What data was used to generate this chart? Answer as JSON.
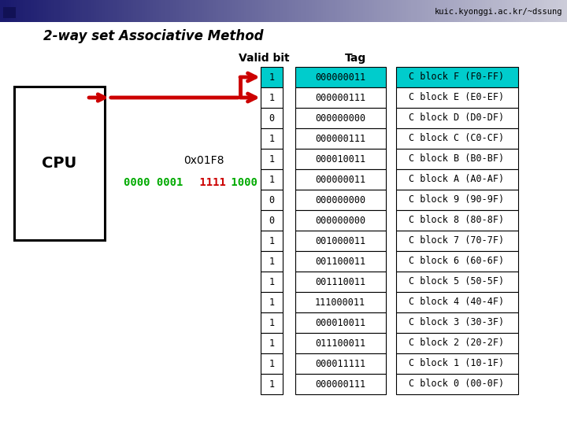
{
  "title": "2-way set Associative Method",
  "watermark": "kuic.kyonggi.ac.kr/~dssung",
  "valid_bits": [
    "1",
    "1",
    "0",
    "1",
    "1",
    "1",
    "0",
    "0",
    "1",
    "1",
    "1",
    "1",
    "1",
    "1",
    "1",
    "1"
  ],
  "tags": [
    "000000011",
    "000000111",
    "000000000",
    "000000111",
    "000010011",
    "000000011",
    "000000000",
    "000000000",
    "001000011",
    "001100011",
    "001110011",
    "111000011",
    "000010011",
    "011100011",
    "000011111",
    "000000111"
  ],
  "cache_blocks": [
    "C block F (F0-FF)",
    "C block E (E0-EF)",
    "C block D (D0-DF)",
    "C block C (C0-CF)",
    "C block B (B0-BF)",
    "C block A (A0-AF)",
    "C block 9 (90-9F)",
    "C block 8 (80-8F)",
    "C block 7 (70-7F)",
    "C block 6 (60-6F)",
    "C block 5 (50-5F)",
    "C block 4 (40-4F)",
    "C block 3 (30-3F)",
    "C block 2 (20-2F)",
    "C block 1 (10-1F)",
    "C block 0 (00-0F)"
  ],
  "highlighted_row": 0,
  "highlight_color": "#00CCCC",
  "bg_color": "#ffffff",
  "cpu_label": "CPU",
  "address_label": "0x01F8",
  "binary_green1": "0000 0001",
  "binary_red": " 1111",
  "binary_green2": " 1000",
  "valid_bit_label": "Valid bit",
  "tag_label": "Tag",
  "arrow_color": "#cc0000",
  "header_dark_color": "#1a1a6e",
  "header_light_color": "#c8c8d8"
}
